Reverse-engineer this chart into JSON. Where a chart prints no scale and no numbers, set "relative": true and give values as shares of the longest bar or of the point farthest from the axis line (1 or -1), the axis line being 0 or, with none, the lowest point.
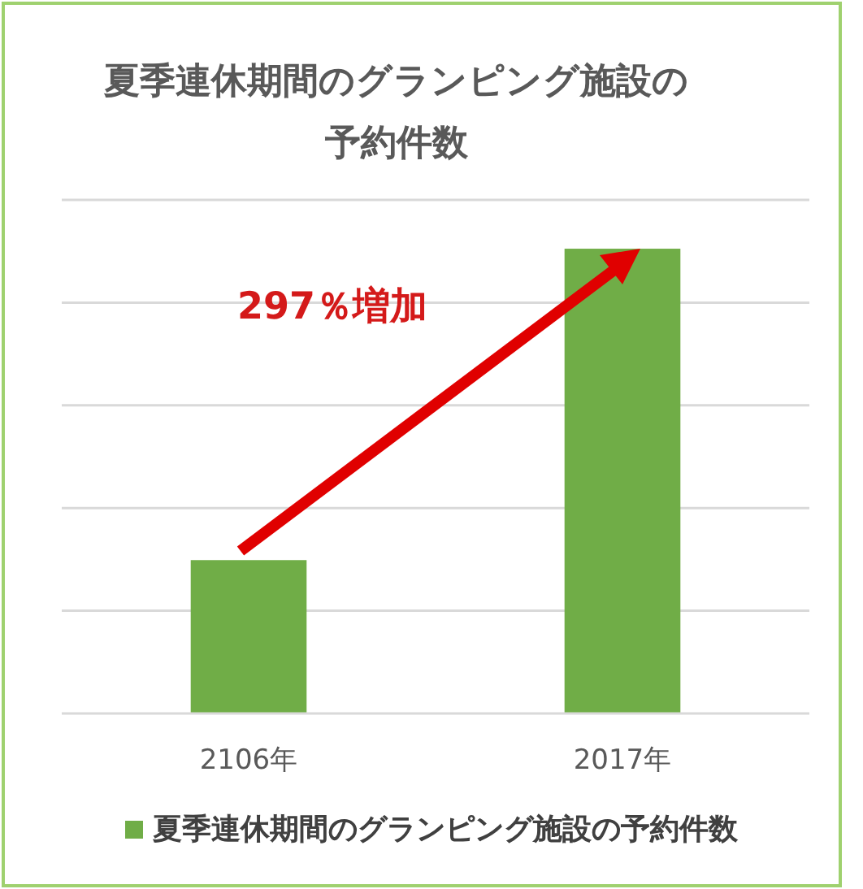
{
  "chart_data": {
    "type": "bar",
    "title": "夏季連休期間のグランピング施設の予約件数",
    "categories": [
      "2106年",
      "2017年"
    ],
    "series": [
      {
        "name": "夏季連休期間のグランピング施設の予約件数",
        "color": "#70ad47",
        "values": [
          0.33,
          1
        ]
      }
    ],
    "relative": true,
    "grid": "y",
    "legend": "bottom",
    "annotations": [
      "297％増加"
    ]
  }
}
